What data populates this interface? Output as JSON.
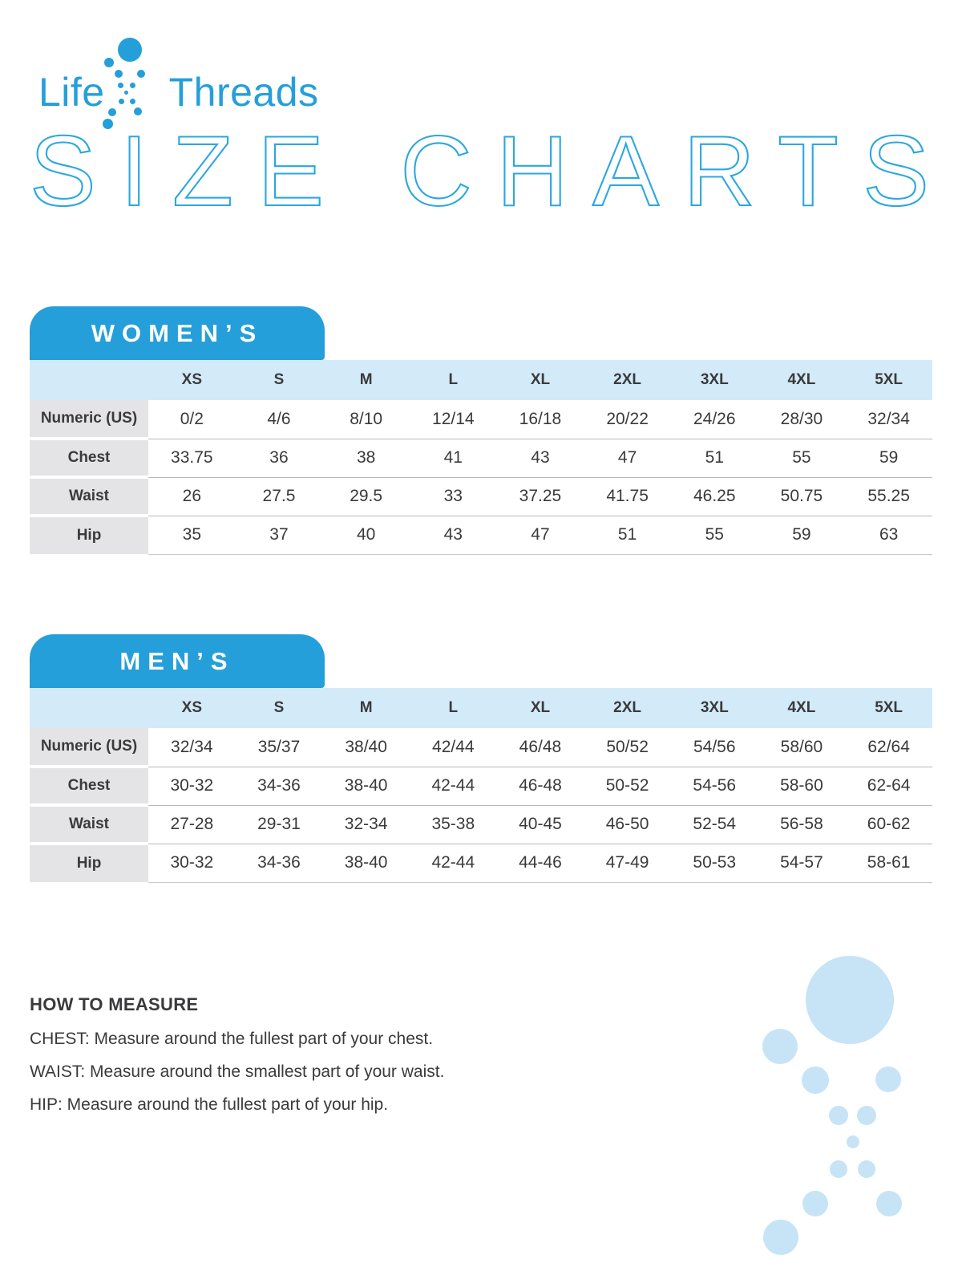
{
  "logo": {
    "part1": "Life",
    "part2": "Threads"
  },
  "page_title": "SIZE CHARTS",
  "tables": [
    {
      "tab_label": "WOMEN’S",
      "size_headers": [
        "XS",
        "S",
        "M",
        "L",
        "XL",
        "2XL",
        "3XL",
        "4XL",
        "5XL"
      ],
      "rows": [
        {
          "label": "Numeric (US)",
          "values": [
            "0/2",
            "4/6",
            "8/10",
            "12/14",
            "16/18",
            "20/22",
            "24/26",
            "28/30",
            "32/34"
          ]
        },
        {
          "label": "Chest",
          "values": [
            "33.75",
            "36",
            "38",
            "41",
            "43",
            "47",
            "51",
            "55",
            "59"
          ]
        },
        {
          "label": "Waist",
          "values": [
            "26",
            "27.5",
            "29.5",
            "33",
            "37.25",
            "41.75",
            "46.25",
            "50.75",
            "55.25"
          ]
        },
        {
          "label": "Hip",
          "values": [
            "35",
            "37",
            "40",
            "43",
            "47",
            "51",
            "55",
            "59",
            "63"
          ]
        }
      ]
    },
    {
      "tab_label": "MEN’S",
      "size_headers": [
        "XS",
        "S",
        "M",
        "L",
        "XL",
        "2XL",
        "3XL",
        "4XL",
        "5XL"
      ],
      "rows": [
        {
          "label": "Numeric (US)",
          "values": [
            "32/34",
            "35/37",
            "38/40",
            "42/44",
            "46/48",
            "50/52",
            "54/56",
            "58/60",
            "62/64"
          ]
        },
        {
          "label": "Chest",
          "values": [
            "30-32",
            "34-36",
            "38-40",
            "42-44",
            "46-48",
            "50-52",
            "54-56",
            "58-60",
            "62-64"
          ]
        },
        {
          "label": "Waist",
          "values": [
            "27-28",
            "29-31",
            "32-34",
            "35-38",
            "40-45",
            "46-50",
            "52-54",
            "56-58",
            "60-62"
          ]
        },
        {
          "label": "Hip",
          "values": [
            "30-32",
            "34-36",
            "38-40",
            "42-44",
            "44-46",
            "47-49",
            "50-53",
            "54-57",
            "58-61"
          ]
        }
      ]
    }
  ],
  "how_to_measure": {
    "title": "HOW TO MEASURE",
    "lines": [
      "CHEST: Measure around the fullest part of your chest.",
      "WAIST: Measure around the smallest part of your waist.",
      "HIP: Measure around the fullest part of your hip."
    ]
  },
  "colors": {
    "brand_blue": "#259FD9",
    "outline_blue": "#2BA7E0",
    "band_light_blue": "#D3EAF8",
    "label_gray": "#E4E4E6",
    "pale_blue_dots": "#C6E4F5",
    "text_dark": "#3A3A3C"
  }
}
